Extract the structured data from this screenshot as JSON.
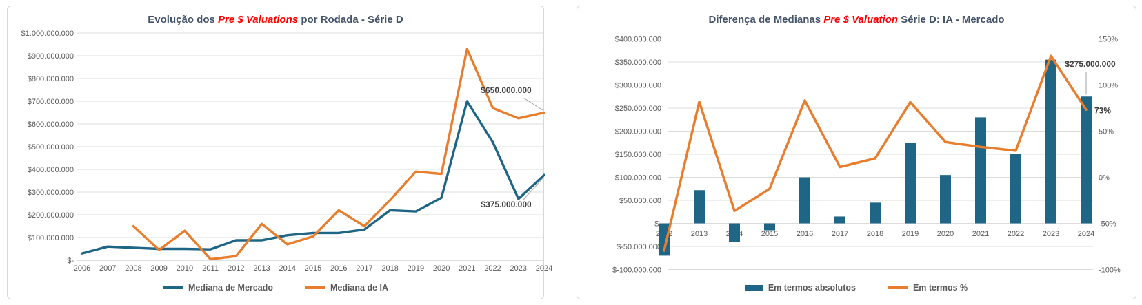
{
  "colors": {
    "mercado": "#1F6585",
    "ia": "#E87D2E",
    "bar": "#1F6585",
    "pct_line": "#E87D2E",
    "title": "#44546A",
    "highlight": "#FF0000",
    "axis_text": "#595959",
    "gridline": "#DCDCDC",
    "axis_line": "#BFBFBF",
    "card_border": "#D6D6D6",
    "annotation_text": "#3F3F3F",
    "leader": "#A0A0A0"
  },
  "left_chart": {
    "title": {
      "prefix": "Evolução dos ",
      "highlight": "Pre $ Valuations",
      "suffix": " por Rodada - Série D"
    },
    "legend": {
      "mercado": "Mediana de Mercado",
      "ia": "Mediana de IA"
    }
  },
  "right_chart": {
    "title": {
      "prefix": "Diferença de Medianas ",
      "highlight": "Pre $ Valuation",
      "suffix": " Série D: IA - Mercado"
    },
    "legend": {
      "abs": "Em termos absolutos",
      "pct": "Em termos %"
    }
  },
  "chart_data": [
    {
      "type": "line",
      "title": "Evolução dos Pre $ Valuations por Rodada - Série D",
      "categories": [
        "2006",
        "2007",
        "2008",
        "2009",
        "2010",
        "2011",
        "2012",
        "2013",
        "2014",
        "2015",
        "2016",
        "2017",
        "2018",
        "2019",
        "2020",
        "2021",
        "2022",
        "2023",
        "2024"
      ],
      "series": [
        {
          "name": "Mediana de Mercado",
          "color": "#1F6585",
          "values": [
            30000000,
            60000000,
            55000000,
            50000000,
            50000000,
            48000000,
            88000000,
            88000000,
            110000000,
            120000000,
            120000000,
            135000000,
            220000000,
            215000000,
            275000000,
            700000000,
            520000000,
            270000000,
            375000000
          ]
        },
        {
          "name": "Mediana de IA",
          "color": "#E87D2E",
          "values": [
            null,
            null,
            150000000,
            45000000,
            130000000,
            5000000,
            18000000,
            160000000,
            70000000,
            105000000,
            220000000,
            150000000,
            265000000,
            390000000,
            380000000,
            930000000,
            670000000,
            625000000,
            650000000
          ]
        }
      ],
      "ylim": [
        0,
        1000000000
      ],
      "ytick_step": 100000000,
      "ytick_labels": [
        "$1.000.000.000",
        "$900.000.000",
        "$800.000.000",
        "$700.000.000",
        "$600.000.000",
        "$500.000.000",
        "$400.000.000",
        "$300.000.000",
        "$200.000.000",
        "$100.000.000",
        "$-"
      ],
      "grid": true,
      "legend_position": "bottom",
      "annotations": [
        {
          "text": "$650.000.000",
          "series": "Mediana de IA",
          "category": "2024",
          "value": 650000000
        },
        {
          "text": "$375.000.000",
          "series": "Mediana de Mercado",
          "category": "2024",
          "value": 375000000
        }
      ]
    },
    {
      "type": "combo-bar-line",
      "title": "Diferença de Medianas Pre $ Valuation Série D: IA - Mercado",
      "categories": [
        "2012",
        "2013",
        "2014",
        "2015",
        "2016",
        "2017",
        "2018",
        "2019",
        "2020",
        "2021",
        "2022",
        "2023",
        "2024"
      ],
      "series": [
        {
          "name": "Em termos absolutos",
          "type": "bar",
          "axis": "left",
          "color": "#1F6585",
          "values": [
            -70000000,
            72000000,
            -40000000,
            -15000000,
            100000000,
            15000000,
            45000000,
            175000000,
            105000000,
            230000000,
            150000000,
            355000000,
            275000000
          ]
        },
        {
          "name": "Em termos %",
          "type": "line",
          "axis": "right",
          "color": "#E87D2E",
          "values": [
            -79.5,
            81.8,
            -36.4,
            -12.5,
            83.3,
            11.1,
            20.5,
            81.4,
            38.2,
            32.9,
            28.8,
            131.5,
            73.3
          ]
        }
      ],
      "left_axis": {
        "ylim": [
          -100000000,
          400000000
        ],
        "tick_step": 50000000,
        "tick_labels": [
          "$400.000.000",
          "$350.000.000",
          "$300.000.000",
          "$250.000.000",
          "$200.000.000",
          "$150.000.000",
          "$100.000.000",
          "$50.000.000",
          "$-",
          "$-50.000.000",
          "$-100.000.000"
        ]
      },
      "right_axis": {
        "ylim": [
          -100,
          150
        ],
        "tick_step": 50,
        "tick_labels": [
          "150%",
          "100%",
          "50%",
          "0%",
          "-50%",
          "-100%"
        ]
      },
      "grid": true,
      "legend_position": "bottom",
      "annotations": [
        {
          "text": "$275.000.000",
          "series": "Em termos absolutos",
          "category": "2024",
          "value": 275000000
        },
        {
          "text": "73%",
          "series": "Em termos %",
          "category": "2024",
          "value": 73.3
        }
      ]
    }
  ]
}
